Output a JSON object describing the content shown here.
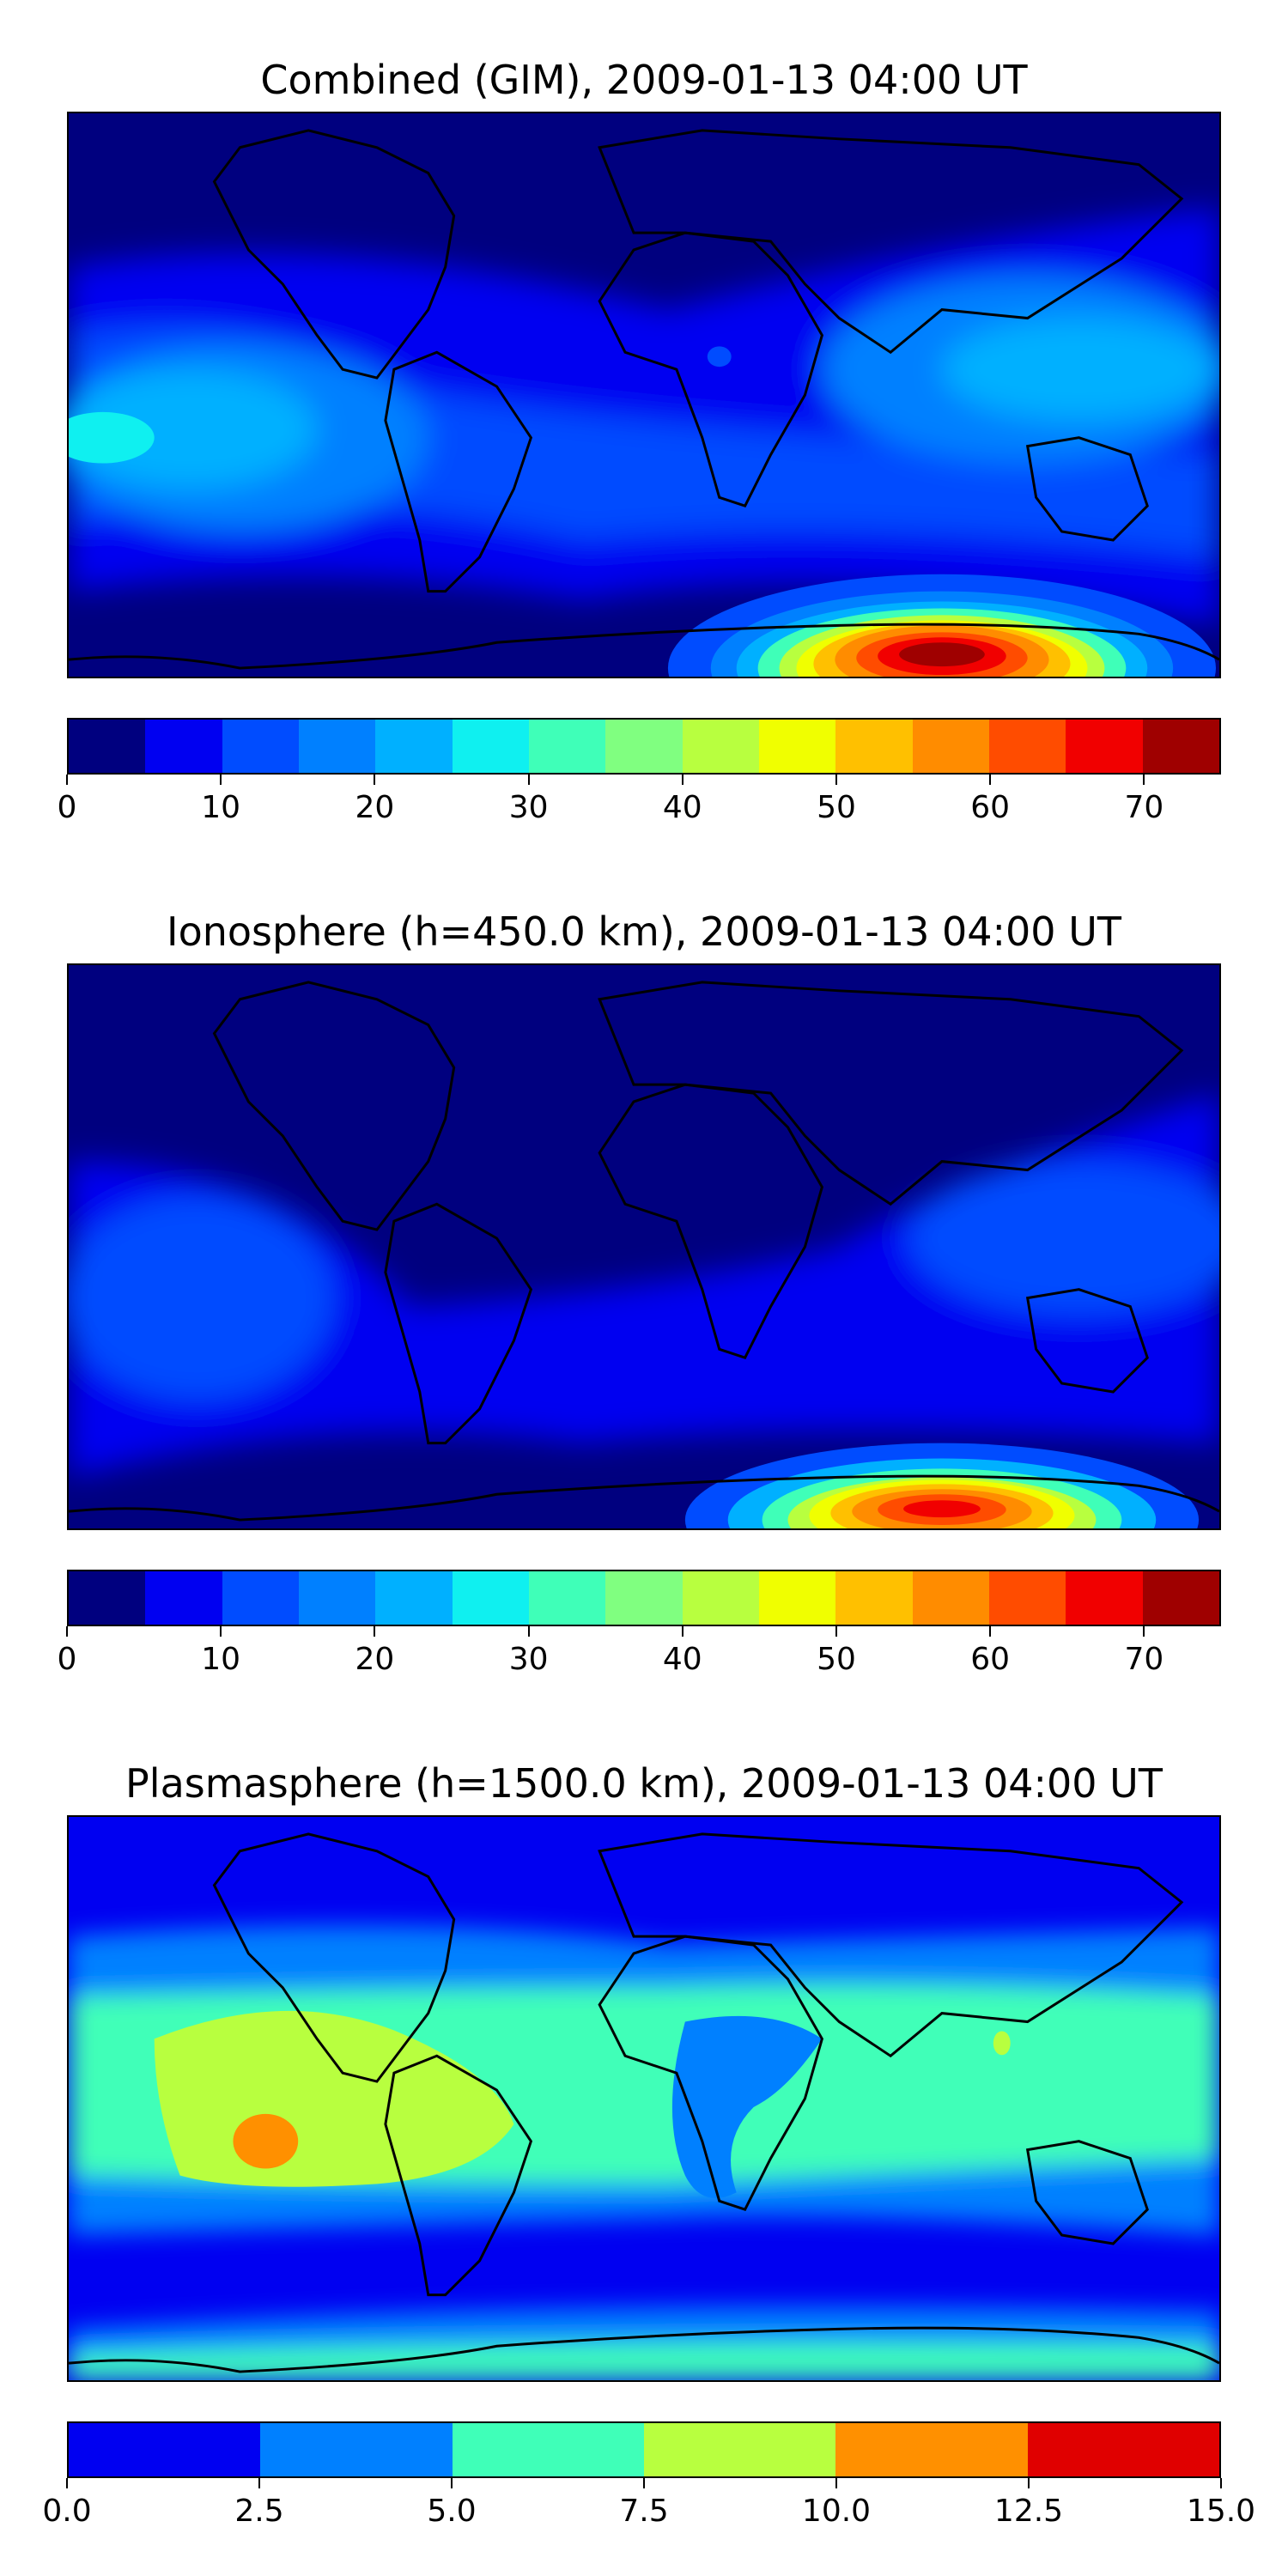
{
  "chart_data": [
    {
      "type": "heatmap",
      "title": "Combined (GIM), 2009-01-13 04:00 UT",
      "colorbar": {
        "levels": [
          0,
          5,
          10,
          15,
          20,
          25,
          30,
          35,
          40,
          45,
          50,
          55,
          60,
          65,
          70,
          75
        ],
        "tick_labels": [
          "0",
          "10",
          "20",
          "30",
          "40",
          "50",
          "60",
          "70"
        ],
        "tick_values": [
          0,
          10,
          20,
          30,
          40,
          50,
          60,
          70
        ],
        "range": [
          0,
          75
        ],
        "colors": [
          "#00007f",
          "#0000f1",
          "#004cff",
          "#0080ff",
          "#00b0ff",
          "#0ff0f0",
          "#3fffb8",
          "#80ff80",
          "#b8ff3f",
          "#f0ff00",
          "#ffc000",
          "#ff8c00",
          "#ff4c00",
          "#f10000",
          "#9f0000"
        ]
      },
      "features": [
        {
          "lon": 60,
          "lat": -63,
          "value": 72
        },
        {
          "lon": -170,
          "lat": 15,
          "value": 30
        },
        {
          "lon": 140,
          "lat": 15,
          "value": 22
        },
        {
          "lon": 10,
          "lat": 5,
          "value": 5
        }
      ]
    },
    {
      "type": "heatmap",
      "title": "Ionosphere  (h=450.0 km), 2009-01-13 04:00 UT",
      "colorbar": {
        "levels": [
          0,
          5,
          10,
          15,
          20,
          25,
          30,
          35,
          40,
          45,
          50,
          55,
          60,
          65,
          70,
          75
        ],
        "tick_labels": [
          "0",
          "10",
          "20",
          "30",
          "40",
          "50",
          "60",
          "70"
        ],
        "tick_values": [
          0,
          10,
          20,
          30,
          40,
          50,
          60,
          70
        ],
        "range": [
          0,
          75
        ],
        "colors": [
          "#00007f",
          "#0000f1",
          "#004cff",
          "#0080ff",
          "#00b0ff",
          "#0ff0f0",
          "#3fffb8",
          "#80ff80",
          "#b8ff3f",
          "#f0ff00",
          "#ffc000",
          "#ff8c00",
          "#ff4c00",
          "#f10000",
          "#9f0000"
        ]
      },
      "features": [
        {
          "lon": 60,
          "lat": -63,
          "value": 65
        },
        {
          "lon": -170,
          "lat": 15,
          "value": 17
        },
        {
          "lon": 140,
          "lat": 15,
          "value": 15
        }
      ]
    },
    {
      "type": "heatmap",
      "title": "Plasmasphere (h=1500.0 km), 2009-01-13 04:00 UT",
      "colorbar": {
        "levels": [
          0.0,
          2.5,
          5.0,
          7.5,
          10.0,
          12.5,
          15.0
        ],
        "tick_labels": [
          "0.0",
          "2.5",
          "5.0",
          "7.5",
          "10.0",
          "12.5",
          "15.0"
        ],
        "tick_values": [
          0.0,
          2.5,
          5.0,
          7.5,
          10.0,
          12.5,
          15.0
        ],
        "range": [
          0,
          15
        ],
        "colors": [
          "#0000f1",
          "#0080ff",
          "#3fffb8",
          "#b8ff3f",
          "#ff9000",
          "#e00000"
        ]
      },
      "features": [
        {
          "lon": -120,
          "lat": -5,
          "value": 11
        },
        {
          "lon": -100,
          "lat": -5,
          "value": 9
        },
        {
          "lon": 40,
          "lat": 5,
          "value": 6
        },
        {
          "lon": 0,
          "lat": -65,
          "value": 2
        }
      ]
    }
  ]
}
